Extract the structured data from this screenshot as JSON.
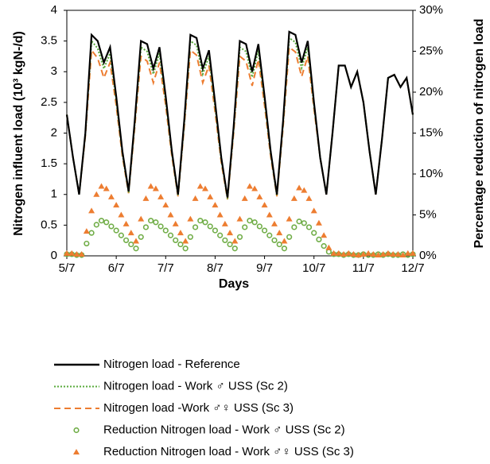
{
  "chart_data": {
    "type": "line",
    "xlabel": "Days",
    "ylabel": "Nitrogen influent load (10³ kgN-/d)",
    "y2label": "Percentage reduction of nitrogen load",
    "xlim": [
      0,
      7
    ],
    "xticks": [
      {
        "value": 0,
        "label": "5/7"
      },
      {
        "value": 1,
        "label": "6/7"
      },
      {
        "value": 2,
        "label": "7/7"
      },
      {
        "value": 3,
        "label": "8/7"
      },
      {
        "value": 4,
        "label": "9/7"
      },
      {
        "value": 5,
        "label": "10/7"
      },
      {
        "value": 6,
        "label": "11/7"
      },
      {
        "value": 7,
        "label": "12/7"
      }
    ],
    "ylim": [
      0,
      4
    ],
    "yticks": [
      0,
      0.5,
      1,
      1.5,
      2,
      2.5,
      3,
      3.5,
      4
    ],
    "y2lim": [
      0,
      30
    ],
    "y2ticks": [
      {
        "value": 0,
        "label": "0%"
      },
      {
        "value": 5,
        "label": "5%"
      },
      {
        "value": 10,
        "label": "10%"
      },
      {
        "value": 15,
        "label": "15%"
      },
      {
        "value": 20,
        "label": "20%"
      },
      {
        "value": 25,
        "label": "25%"
      },
      {
        "value": 30,
        "label": "30%"
      }
    ],
    "grid": false,
    "series": [
      {
        "name": "Nitrogen load - Reference",
        "color": "#000000",
        "kind": "line",
        "dash": "solid",
        "x": [
          0,
          0.125,
          0.25,
          0.375,
          0.5,
          0.625,
          0.75,
          0.875,
          1,
          1.125,
          1.25,
          1.375,
          1.5,
          1.625,
          1.75,
          1.875,
          2,
          2.125,
          2.25,
          2.375,
          2.5,
          2.625,
          2.75,
          2.875,
          3,
          3.125,
          3.25,
          3.375,
          3.5,
          3.625,
          3.75,
          3.875,
          4,
          4.125,
          4.25,
          4.375,
          4.5,
          4.625,
          4.75,
          4.875,
          5,
          5.125,
          5.25,
          5.375,
          5.5,
          5.625,
          5.75,
          5.875,
          6,
          6.125,
          6.25,
          6.375,
          6.5,
          6.625,
          6.75,
          6.875,
          7
        ],
        "values": [
          2.3,
          1.6,
          1.0,
          2.0,
          3.6,
          3.5,
          3.15,
          3.4,
          2.6,
          1.7,
          1.05,
          2.2,
          3.5,
          3.45,
          3.05,
          3.4,
          2.6,
          1.7,
          1.0,
          2.2,
          3.6,
          3.55,
          3.05,
          3.35,
          2.5,
          1.6,
          0.95,
          2.1,
          3.5,
          3.45,
          3.0,
          3.45,
          2.6,
          1.7,
          1.0,
          2.2,
          3.65,
          3.6,
          3.15,
          3.5,
          2.5,
          1.6,
          1.0,
          2.0,
          3.1,
          3.1,
          2.75,
          3.0,
          2.5,
          1.7,
          1.0,
          1.9,
          2.9,
          2.95,
          2.75,
          2.9,
          2.3
        ]
      },
      {
        "name": "Nitrogen load - Work ♂ USS (Sc 2)",
        "color": "#5aab3c",
        "kind": "line",
        "dash": "dotted",
        "x": [
          0,
          0.125,
          0.25,
          0.375,
          0.5,
          0.625,
          0.75,
          0.875,
          1,
          1.125,
          1.25,
          1.375,
          1.5,
          1.625,
          1.75,
          1.875,
          2,
          2.125,
          2.25,
          2.375,
          2.5,
          2.625,
          2.75,
          2.875,
          3,
          3.125,
          3.25,
          3.375,
          3.5,
          3.625,
          3.75,
          3.875,
          4,
          4.125,
          4.25,
          4.375,
          4.5,
          4.625,
          4.75,
          4.875,
          5,
          5.125,
          5.25,
          5.375,
          5.5,
          5.625,
          5.75,
          5.875,
          6,
          6.125,
          6.25,
          6.375,
          6.5,
          6.625,
          6.75,
          6.875,
          7
        ],
        "values": [
          2.3,
          1.6,
          1.0,
          1.98,
          3.5,
          3.38,
          3.05,
          3.3,
          2.53,
          1.66,
          1.03,
          2.15,
          3.4,
          3.33,
          2.96,
          3.3,
          2.53,
          1.66,
          0.98,
          2.15,
          3.5,
          3.43,
          2.96,
          3.25,
          2.43,
          1.56,
          0.93,
          2.05,
          3.4,
          3.33,
          2.91,
          3.35,
          2.53,
          1.66,
          0.98,
          2.15,
          3.55,
          3.48,
          3.06,
          3.4,
          2.45,
          1.6,
          1.0,
          2.0,
          3.1,
          3.1,
          2.75,
          3.0,
          2.5,
          1.7,
          1.0,
          1.9,
          2.9,
          2.95,
          2.75,
          2.9,
          2.3
        ]
      },
      {
        "name": "Nitrogen load -Work ♂♀ USS (Sc 3)",
        "color": "#ed7d31",
        "kind": "line",
        "dash": "dashed",
        "x": [
          0,
          0.125,
          0.25,
          0.375,
          0.5,
          0.625,
          0.75,
          0.875,
          1,
          1.125,
          1.25,
          1.375,
          1.5,
          1.625,
          1.75,
          1.875,
          2,
          2.125,
          2.25,
          2.375,
          2.5,
          2.625,
          2.75,
          2.875,
          3,
          3.125,
          3.25,
          3.375,
          3.5,
          3.625,
          3.75,
          3.875,
          4,
          4.125,
          4.25,
          4.375,
          4.5,
          4.625,
          4.75,
          4.875,
          5,
          5.125,
          5.25,
          5.375,
          5.5,
          5.625,
          5.75,
          5.875,
          6,
          6.125,
          6.25,
          6.375,
          6.5,
          6.625,
          6.75,
          6.875,
          7
        ],
        "values": [
          2.3,
          1.6,
          1.0,
          1.95,
          3.35,
          3.22,
          2.9,
          3.15,
          2.45,
          1.62,
          1.02,
          2.1,
          3.25,
          3.17,
          2.82,
          3.15,
          2.45,
          1.62,
          0.97,
          2.1,
          3.35,
          3.27,
          2.82,
          3.1,
          2.35,
          1.52,
          0.92,
          2.0,
          3.25,
          3.17,
          2.77,
          3.2,
          2.45,
          1.62,
          0.97,
          2.1,
          3.4,
          3.32,
          2.92,
          3.25,
          2.4,
          1.6,
          1.0,
          2.0,
          3.1,
          3.1,
          2.75,
          3.0,
          2.5,
          1.7,
          1.0,
          1.9,
          2.9,
          2.95,
          2.75,
          2.9,
          2.3
        ]
      },
      {
        "name": "Reduction Nitrogen load - Work ♂ USS (Sc 2)",
        "color": "#70ad47",
        "kind": "scatter",
        "marker": "circle",
        "axis": "y2",
        "x": [
          0,
          0.1,
          0.2,
          0.3,
          0.4,
          0.5,
          0.6,
          0.7,
          0.8,
          0.9,
          1,
          1.1,
          1.2,
          1.3,
          1.4,
          1.5,
          1.6,
          1.7,
          1.8,
          1.9,
          2,
          2.1,
          2.2,
          2.3,
          2.4,
          2.5,
          2.6,
          2.7,
          2.8,
          2.9,
          3,
          3.1,
          3.2,
          3.3,
          3.4,
          3.5,
          3.6,
          3.7,
          3.8,
          3.9,
          4,
          4.1,
          4.2,
          4.3,
          4.4,
          4.5,
          4.6,
          4.7,
          4.8,
          4.9,
          5,
          5.1,
          5.2,
          5.3,
          5.4,
          5.5,
          5.6,
          5.7,
          5.8,
          5.9,
          6,
          6.1,
          6.2,
          6.3,
          6.4,
          6.5,
          6.6,
          6.7,
          6.8,
          6.9,
          7
        ],
        "values": [
          0.2,
          0.2,
          0.1,
          0.1,
          1.5,
          2.8,
          3.8,
          4.3,
          4.1,
          3.6,
          3.1,
          2.5,
          1.9,
          1.4,
          0.9,
          2.3,
          3.5,
          4.3,
          4.1,
          3.6,
          3.1,
          2.5,
          1.9,
          1.4,
          0.9,
          2.3,
          3.5,
          4.3,
          4.1,
          3.6,
          3.1,
          2.5,
          1.9,
          1.4,
          0.9,
          2.3,
          3.5,
          4.3,
          4.1,
          3.6,
          3.1,
          2.5,
          1.9,
          1.4,
          0.9,
          2.3,
          3.5,
          4.2,
          4,
          3.5,
          2.8,
          2,
          1.2,
          0.5,
          0.2,
          0.2,
          0.1,
          0.2,
          0.1,
          0.1,
          0.2,
          0.1,
          0.1,
          0.2,
          0.1,
          0.2,
          0.1,
          0.1,
          0.2,
          0.1,
          0.2
        ]
      },
      {
        "name": "Reduction Nitrogen load - Work ♂♀ USS (Sc 3)",
        "color": "#ed7d31",
        "kind": "scatter",
        "marker": "triangle",
        "axis": "y2",
        "x": [
          0,
          0.1,
          0.2,
          0.3,
          0.4,
          0.5,
          0.6,
          0.7,
          0.8,
          0.9,
          1,
          1.1,
          1.2,
          1.3,
          1.4,
          1.5,
          1.6,
          1.7,
          1.8,
          1.9,
          2,
          2.1,
          2.2,
          2.3,
          2.4,
          2.5,
          2.6,
          2.7,
          2.8,
          2.9,
          3,
          3.1,
          3.2,
          3.3,
          3.4,
          3.5,
          3.6,
          3.7,
          3.8,
          3.9,
          4,
          4.1,
          4.2,
          4.3,
          4.4,
          4.5,
          4.6,
          4.7,
          4.8,
          4.9,
          5,
          5.1,
          5.2,
          5.3,
          5.4,
          5.5,
          5.6,
          5.7,
          5.8,
          5.9,
          6,
          6.1,
          6.2,
          6.3,
          6.4,
          6.5,
          6.6,
          6.7,
          6.8,
          6.9,
          7
        ],
        "values": [
          0.3,
          0.3,
          0.2,
          0.2,
          3,
          5.5,
          7.5,
          8.5,
          8.2,
          7.2,
          6.2,
          5,
          3.9,
          2.8,
          1.8,
          4.5,
          7,
          8.5,
          8.2,
          7.2,
          6.2,
          5,
          3.9,
          2.8,
          1.8,
          4.5,
          7,
          8.5,
          8.2,
          7.2,
          6.2,
          5,
          3.9,
          2.8,
          1.8,
          4.5,
          7,
          8.5,
          8.2,
          7.2,
          6.2,
          5,
          3.9,
          2.8,
          1.8,
          4.5,
          7,
          8.3,
          8,
          7,
          5.5,
          4,
          2.5,
          1,
          0.3,
          0.3,
          0.2,
          0.3,
          0.2,
          0.1,
          0.2,
          0.3,
          0.2,
          0.1,
          0.2,
          0.3,
          0.2,
          0.2,
          0.1,
          0.3,
          0.3
        ]
      }
    ]
  }
}
